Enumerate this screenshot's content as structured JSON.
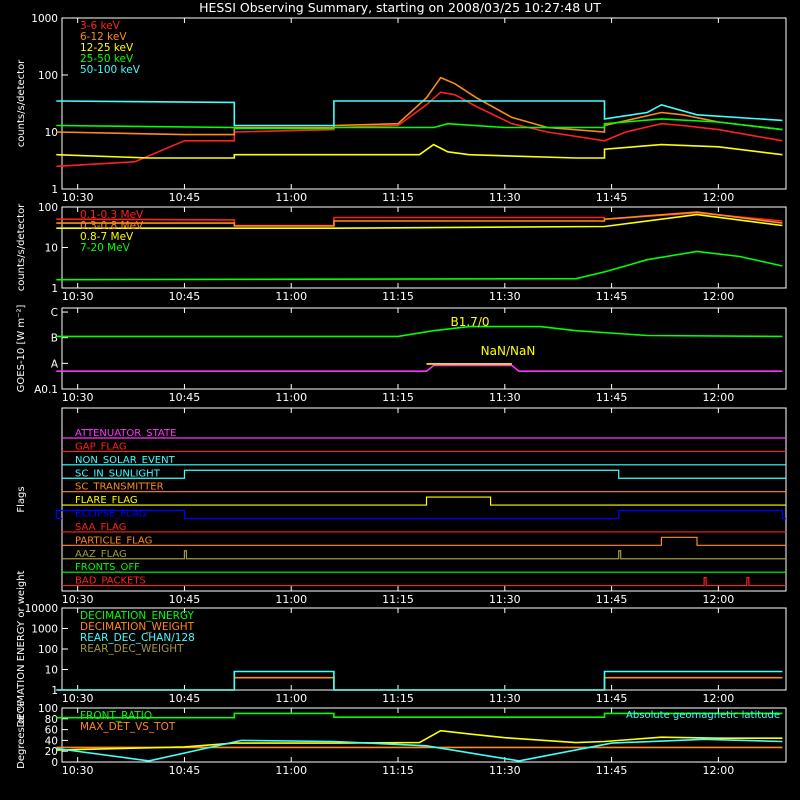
{
  "title": "HESSI Observing Summary, starting on 2008/03/25 10:27:48 UT",
  "time_ticks": [
    "10:30",
    "10:45",
    "11:00",
    "11:15",
    "11:30",
    "11:45",
    "12:00"
  ],
  "colors": {
    "background": "#000000",
    "axes": "#ffffff",
    "red": "#ff2020",
    "orange": "#ff8a1a",
    "yellow": "#ffff00",
    "green": "#00ff00",
    "cyan": "#40ffff",
    "magenta": "#ff33ff",
    "blue": "#0000ff",
    "olive": "#a09a40"
  },
  "chart_data": [
    {
      "id": "lo-energy",
      "type": "line",
      "ylabel": "counts/s/detector",
      "yscale": "log",
      "ylim": [
        1,
        1000
      ],
      "yticks": [
        "1",
        "10",
        "100",
        "1000"
      ],
      "x_range": [
        "10:27:48",
        "12:09:30"
      ],
      "legend": "top-left",
      "series": [
        {
          "name": "3-6 keV",
          "color": "red",
          "x": [
            "10:27",
            "10:38",
            "10:45",
            "10:52",
            "10:52",
            "11:06",
            "11:06",
            "11:15",
            "11:19",
            "11:21",
            "11:23",
            "11:26",
            "11:31",
            "11:36",
            "11:44",
            "11:44",
            "11:47",
            "11:52",
            "11:55",
            "12:00",
            "12:09"
          ],
          "y": [
            2.5,
            3,
            7,
            7,
            10,
            11,
            12,
            13,
            30,
            50,
            45,
            28,
            14,
            10,
            7,
            7,
            10,
            14,
            13,
            11,
            7
          ]
        },
        {
          "name": "6-12 keV",
          "color": "orange",
          "x": [
            "10:27",
            "10:45",
            "10:52",
            "10:52",
            "11:06",
            "11:06",
            "11:15",
            "11:19",
            "11:21",
            "11:23",
            "11:26",
            "11:31",
            "11:36",
            "11:44",
            "11:44",
            "11:52",
            "11:55",
            "12:00",
            "12:09"
          ],
          "y": [
            10,
            9,
            9,
            12,
            12,
            13,
            14,
            40,
            90,
            70,
            40,
            18,
            12,
            10,
            13,
            22,
            20,
            15,
            11
          ]
        },
        {
          "name": "12-25 keV",
          "color": "yellow",
          "x": [
            "10:27",
            "10:40",
            "10:52",
            "10:52",
            "11:06",
            "11:06",
            "11:18",
            "11:20",
            "11:22",
            "11:25",
            "11:40",
            "11:44",
            "11:44",
            "11:52",
            "12:00",
            "12:09"
          ],
          "y": [
            4,
            3.5,
            3.5,
            4,
            4,
            4,
            4,
            6,
            4.5,
            4,
            3.5,
            3.5,
            5,
            6,
            5.5,
            4
          ]
        },
        {
          "name": "25-50 keV",
          "color": "green",
          "x": [
            "10:27",
            "10:52",
            "10:52",
            "11:06",
            "11:06",
            "11:20",
            "11:22",
            "11:30",
            "11:44",
            "11:44",
            "11:52",
            "12:00",
            "12:09"
          ],
          "y": [
            13,
            12,
            11.5,
            11.5,
            12,
            12,
            14,
            12,
            12,
            14,
            17,
            15,
            11
          ]
        },
        {
          "name": "50-100 keV",
          "color": "cyan",
          "x": [
            "10:27",
            "10:52",
            "10:52",
            "11:06",
            "11:06",
            "11:44",
            "11:44",
            "11:50",
            "11:52",
            "11:57",
            "12:09"
          ],
          "y": [
            35,
            33,
            13,
            13,
            35,
            35,
            17,
            22,
            30,
            20,
            16
          ]
        }
      ]
    },
    {
      "id": "hi-energy",
      "type": "line",
      "ylabel": "counts/s/detector",
      "yscale": "log",
      "ylim": [
        1,
        100
      ],
      "yticks": [
        "1",
        "10",
        "100"
      ],
      "x_range": [
        "10:27:48",
        "12:09:30"
      ],
      "legend": "top-left",
      "series": [
        {
          "name": "0.1-0.3 MeV",
          "color": "red",
          "x": [
            "10:27",
            "10:52",
            "10:52",
            "11:06",
            "11:06",
            "11:44",
            "11:44",
            "11:57",
            "12:09"
          ],
          "y": [
            50,
            48,
            35,
            35,
            55,
            55,
            50,
            72,
            45
          ]
        },
        {
          "name": "0.3-0.8 MeV",
          "color": "orange",
          "x": [
            "10:27",
            "10:52",
            "10:52",
            "11:06",
            "11:06",
            "11:44",
            "11:44",
            "11:57",
            "12:09"
          ],
          "y": [
            40,
            40,
            34,
            34,
            45,
            45,
            50,
            75,
            40
          ]
        },
        {
          "name": "0.8-7 MeV",
          "color": "yellow",
          "x": [
            "10:27",
            "10:52",
            "11:06",
            "11:44",
            "11:57",
            "12:09"
          ],
          "y": [
            30,
            30,
            30,
            33,
            65,
            35
          ]
        },
        {
          "name": "7-20 MeV",
          "color": "green",
          "x": [
            "10:27",
            "11:40",
            "11:44",
            "11:50",
            "11:57",
            "12:03",
            "12:09"
          ],
          "y": [
            1.6,
            1.7,
            2.5,
            5,
            8,
            6,
            3.5
          ]
        }
      ]
    },
    {
      "id": "goes",
      "type": "line",
      "ylabel": "GOES-10 [W m⁻²]",
      "yscale": "category",
      "ylim": [
        "A0.1",
        "C"
      ],
      "yticks": [
        "A0.1",
        "A",
        "B",
        "C"
      ],
      "x_range": [
        "10:27:48",
        "12:09:30"
      ],
      "annotations": [
        "B1.7/0",
        "NaN/NaN"
      ],
      "series": [
        {
          "color": "green",
          "x": [
            "10:27",
            "11:15",
            "11:20",
            "11:25",
            "11:35",
            "11:40",
            "11:50",
            "12:09"
          ],
          "y": [
            6.5,
            6.5,
            7.2,
            7.7,
            7.7,
            7.2,
            6.6,
            6.5
          ]
        },
        {
          "color": "magenta",
          "x": [
            "10:27",
            "11:19",
            "11:20",
            "11:31",
            "11:32",
            "12:09"
          ],
          "y": [
            2.2,
            2.2,
            2.9,
            2.9,
            2.2,
            2.2
          ]
        },
        {
          "color": "yellow",
          "x": [
            "11:19",
            "11:31"
          ],
          "y": [
            3.1,
            3.1
          ]
        }
      ]
    },
    {
      "id": "flags",
      "type": "step",
      "ylabel": "Flags",
      "x_range": [
        "10:27:48",
        "12:09:30"
      ],
      "flags": [
        {
          "name": "ATTENUATOR_STATE",
          "color": "magenta",
          "on": []
        },
        {
          "name": "GAP_FLAG",
          "color": "red",
          "on": []
        },
        {
          "name": "NON_SOLAR_EVENT",
          "color": "cyan",
          "on": []
        },
        {
          "name": "SC_IN_SUNLIGHT",
          "color": "cyan",
          "on": [
            [
              "10:45",
              "11:46"
            ]
          ]
        },
        {
          "name": "SC_TRANSMITTER",
          "color": "orange",
          "on": []
        },
        {
          "name": "FLARE_FLAG",
          "color": "yellow",
          "on": [
            [
              "11:19",
              "11:28"
            ]
          ]
        },
        {
          "name": "ECLIPSE_FLAG",
          "color": "blue",
          "on": [
            [
              "10:27",
              "10:45"
            ],
            [
              "11:46",
              "12:09"
            ]
          ]
        },
        {
          "name": "SAA_FLAG",
          "color": "red",
          "on": []
        },
        {
          "name": "PARTICLE_FLAG",
          "color": "orange",
          "on": [
            [
              "11:52",
              "11:57"
            ]
          ]
        },
        {
          "name": "AAZ_FLAG",
          "color": "olive",
          "on": [
            [
              "10:45",
              "10:45"
            ],
            [
              "11:46",
              "11:46"
            ]
          ]
        },
        {
          "name": "FRONTS_OFF",
          "color": "green",
          "on": []
        },
        {
          "name": "BAD_PACKETS",
          "color": "red",
          "on": [
            [
              "11:58",
              "11:58"
            ],
            [
              "12:04",
              "12:04"
            ]
          ]
        }
      ]
    },
    {
      "id": "decimation",
      "type": "step",
      "ylabel": "DECIMATION ENERGY or weight",
      "yscale": "log",
      "ylim": [
        1,
        10000
      ],
      "yticks": [
        "1",
        "10",
        "100",
        "1000",
        "10000"
      ],
      "x_range": [
        "10:27:48",
        "12:09:30"
      ],
      "legend": "top-left",
      "series": [
        {
          "name": "DECIMATION_ENERGY",
          "color": "green",
          "x": [],
          "y": []
        },
        {
          "name": "DECIMATION_WEIGHT",
          "color": "orange",
          "x": [
            "10:27",
            "10:52",
            "10:52",
            "11:06",
            "11:06",
            "11:44",
            "11:44",
            "12:09"
          ],
          "y": [
            1,
            1,
            4,
            4,
            1,
            1,
            4,
            4
          ]
        },
        {
          "name": "REAR_DEC_CHAN/128",
          "color": "cyan",
          "x": [
            "10:27",
            "10:52",
            "10:52",
            "11:06",
            "11:06",
            "11:44",
            "11:44",
            "12:09"
          ],
          "y": [
            1,
            1,
            8,
            8,
            1,
            1,
            8,
            8
          ]
        },
        {
          "name": "REAR_DEC_WEIGHT",
          "color": "olive",
          "x": [],
          "y": []
        }
      ]
    },
    {
      "id": "ratios",
      "type": "line",
      "ylabel": "Degrees or %",
      "ylim": [
        0,
        100
      ],
      "yticks": [
        "0",
        "20",
        "40",
        "60",
        "80",
        "100"
      ],
      "x_range": [
        "10:27:48",
        "12:09:30"
      ],
      "legend": "top-left",
      "right_label": "Absolute geomagnetic latitude",
      "series": [
        {
          "name": "FRONT_RATIO",
          "color": "green",
          "x": [
            "10:27",
            "10:52",
            "10:52",
            "11:06",
            "11:06",
            "11:44",
            "11:44",
            "12:09"
          ],
          "y": [
            82,
            82,
            90,
            90,
            83,
            83,
            90,
            90
          ]
        },
        {
          "name": "MAX_DET_VS_TOT",
          "color": "orange",
          "x": [
            "10:27",
            "12:09"
          ],
          "y": [
            27,
            27
          ]
        },
        {
          "color": "yellow",
          "x": [
            "10:27",
            "10:45",
            "10:52",
            "11:06",
            "11:18",
            "11:21",
            "11:25",
            "11:30",
            "11:40",
            "11:44",
            "11:52",
            "12:00",
            "12:09"
          ],
          "y": [
            22,
            28,
            35,
            35,
            36,
            58,
            52,
            45,
            36,
            38,
            46,
            44,
            44
          ]
        },
        {
          "color": "cyan",
          "x": [
            "10:27",
            "10:40",
            "10:53",
            "11:06",
            "11:19",
            "11:32",
            "11:45",
            "11:58",
            "12:09"
          ],
          "y": [
            25,
            2,
            40,
            38,
            30,
            2,
            35,
            42,
            38
          ]
        }
      ]
    }
  ]
}
